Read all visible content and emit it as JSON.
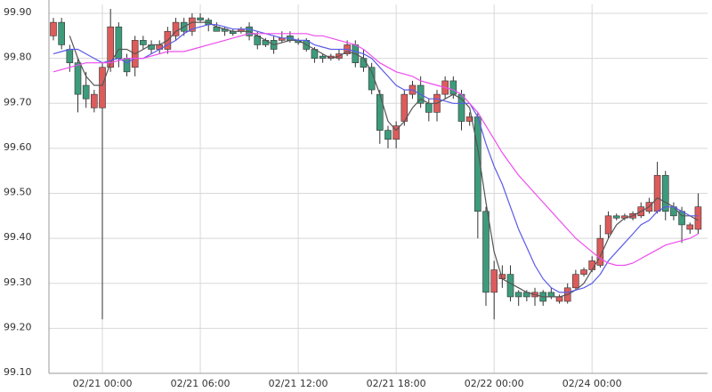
{
  "chart_data": {
    "type": "candlestick",
    "categories": [
      null,
      null,
      null,
      null,
      null,
      null,
      "02/21 00:00",
      null,
      null,
      null,
      null,
      null,
      null,
      null,
      null,
      null,
      null,
      null,
      "02/21 06:00",
      null,
      null,
      null,
      null,
      null,
      null,
      null,
      null,
      null,
      null,
      null,
      "02/21 12:00",
      null,
      null,
      null,
      null,
      null,
      null,
      null,
      null,
      null,
      null,
      null,
      "02/21 18:00",
      null,
      null,
      null,
      null,
      null,
      null,
      null,
      null,
      null,
      null,
      null,
      "02/22 00:00",
      null,
      null,
      null,
      null,
      null,
      null,
      null,
      null,
      null,
      null,
      null,
      "02/24 00:00",
      null,
      null,
      null,
      null,
      null,
      null,
      null,
      null,
      null,
      null,
      null,
      null,
      null
    ],
    "open": [
      99.85,
      99.88,
      99.82,
      99.79,
      99.74,
      99.69,
      99.69,
      99.78,
      99.87,
      99.8,
      99.78,
      99.84,
      99.83,
      99.82,
      99.82,
      99.85,
      99.88,
      99.86,
      99.89,
      99.885,
      99.87,
      99.865,
      99.86,
      99.86,
      99.87,
      99.85,
      99.84,
      99.84,
      99.84,
      99.85,
      99.84,
      99.84,
      99.82,
      99.805,
      99.8,
      99.8,
      99.81,
      99.83,
      99.8,
      99.78,
      99.72,
      99.64,
      99.62,
      99.66,
      99.72,
      99.74,
      99.7,
      99.68,
      99.72,
      99.75,
      99.72,
      99.66,
      99.67,
      99.46,
      99.28,
      99.31,
      99.32,
      99.28,
      99.28,
      99.27,
      99.28,
      99.28,
      99.26,
      99.26,
      99.29,
      99.32,
      99.33,
      99.34,
      99.41,
      99.45,
      99.445,
      99.445,
      99.45,
      99.46,
      99.46,
      99.54,
      99.47,
      99.46,
      99.42,
      99.42
    ],
    "high": [
      99.89,
      99.89,
      99.83,
      99.8,
      99.77,
      99.73,
      99.79,
      99.91,
      99.88,
      99.81,
      99.85,
      99.85,
      99.84,
      99.84,
      99.87,
      99.89,
      99.89,
      99.9,
      99.9,
      99.89,
      99.88,
      99.87,
      99.865,
      99.87,
      99.88,
      99.86,
      99.845,
      99.85,
      99.86,
      99.86,
      99.845,
      99.845,
      99.825,
      99.81,
      99.81,
      99.82,
      99.84,
      99.84,
      99.82,
      99.79,
      99.73,
      99.65,
      99.66,
      99.73,
      99.75,
      99.76,
      99.71,
      99.73,
      99.76,
      99.76,
      99.73,
      99.68,
      99.68,
      99.47,
      99.35,
      99.34,
      99.34,
      99.285,
      99.285,
      99.29,
      99.285,
      99.29,
      99.275,
      99.3,
      99.33,
      99.335,
      99.36,
      99.43,
      99.46,
      99.455,
      99.455,
      99.46,
      99.48,
      99.49,
      99.57,
      99.55,
      99.48,
      99.47,
      99.435,
      99.5
    ],
    "low": [
      99.84,
      99.82,
      99.77,
      99.68,
      99.69,
      99.68,
      99.22,
      99.77,
      99.78,
      99.76,
      99.76,
      99.82,
      99.81,
      99.81,
      99.81,
      99.84,
      99.85,
      99.85,
      99.88,
      99.86,
      99.86,
      99.85,
      99.85,
      99.855,
      99.84,
      99.82,
      99.825,
      99.81,
      99.835,
      99.835,
      99.83,
      99.815,
      99.79,
      99.79,
      99.795,
      99.795,
      99.805,
      99.78,
      99.77,
      99.72,
      99.61,
      99.6,
      99.6,
      99.65,
      99.71,
      99.69,
      99.66,
      99.66,
      99.71,
      99.71,
      99.64,
      99.65,
      99.4,
      99.25,
      99.22,
      99.29,
      99.26,
      99.25,
      99.26,
      99.25,
      99.25,
      99.265,
      99.255,
      99.255,
      99.285,
      99.315,
      99.325,
      99.335,
      99.4,
      99.44,
      99.44,
      99.44,
      99.445,
      99.455,
      99.455,
      99.44,
      99.44,
      99.39,
      99.41,
      99.41
    ],
    "close": [
      99.88,
      99.83,
      99.79,
      99.72,
      99.71,
      99.72,
      99.78,
      99.87,
      99.8,
      99.77,
      99.84,
      99.83,
      99.82,
      99.83,
      99.86,
      99.88,
      99.86,
      99.89,
      99.885,
      99.875,
      99.86,
      99.86,
      99.855,
      99.865,
      99.85,
      99.83,
      99.83,
      99.82,
      99.845,
      99.84,
      99.835,
      99.82,
      99.8,
      99.8,
      99.805,
      99.81,
      99.83,
      99.79,
      99.78,
      99.73,
      99.64,
      99.62,
      99.65,
      99.72,
      99.74,
      99.7,
      99.68,
      99.72,
      99.75,
      99.72,
      99.66,
      99.67,
      99.46,
      99.28,
      99.33,
      99.32,
      99.27,
      99.27,
      99.27,
      99.28,
      99.26,
      99.27,
      99.27,
      99.29,
      99.32,
      99.33,
      99.35,
      99.4,
      99.45,
      99.445,
      99.45,
      99.455,
      99.47,
      99.48,
      99.54,
      99.46,
      99.45,
      99.43,
      99.43,
      99.47
    ],
    "up_color": "#dc5c5c",
    "down_color": "#3d9b7b",
    "overlays": [
      {
        "color": "#555555",
        "values": [
          null,
          null,
          99.85,
          99.8,
          99.76,
          99.74,
          99.74,
          99.79,
          99.82,
          99.82,
          99.81,
          99.82,
          99.83,
          99.83,
          99.84,
          99.86,
          99.87,
          99.88,
          99.88,
          99.88,
          99.87,
          99.865,
          99.86,
          99.86,
          99.86,
          99.85,
          99.84,
          99.83,
          99.835,
          99.84,
          99.84,
          99.83,
          99.82,
          99.81,
          99.8,
          99.805,
          99.815,
          99.81,
          99.8,
          99.77,
          99.72,
          99.66,
          99.64,
          99.66,
          99.69,
          99.71,
          99.7,
          99.7,
          99.71,
          99.72,
          99.71,
          99.69,
          99.6,
          99.48,
          99.37,
          99.31,
          99.3,
          99.29,
          99.28,
          99.275,
          99.27,
          99.27,
          99.27,
          99.275,
          99.285,
          99.3,
          99.33,
          99.36,
          99.4,
          99.43,
          99.445,
          99.45,
          99.46,
          99.47,
          99.49,
          99.48,
          99.47,
          99.45,
          99.45,
          99.44
        ]
      },
      {
        "color": "#5a5ae8",
        "values": [
          99.81,
          99.815,
          99.82,
          99.82,
          99.81,
          99.8,
          99.79,
          99.795,
          99.8,
          99.79,
          99.8,
          99.8,
          99.81,
          99.82,
          99.83,
          99.84,
          99.855,
          99.865,
          99.87,
          99.875,
          99.875,
          99.87,
          99.865,
          99.865,
          99.865,
          99.86,
          99.855,
          99.85,
          99.845,
          99.845,
          99.84,
          99.84,
          99.83,
          99.825,
          99.82,
          99.82,
          99.82,
          99.815,
          99.81,
          99.8,
          99.78,
          99.76,
          99.74,
          99.73,
          99.73,
          99.72,
          99.71,
          99.71,
          99.705,
          99.7,
          99.7,
          99.7,
          99.67,
          99.61,
          99.56,
          99.52,
          99.47,
          99.42,
          99.38,
          99.34,
          99.31,
          99.29,
          99.28,
          99.28,
          99.285,
          99.29,
          99.3,
          99.32,
          99.35,
          99.37,
          99.39,
          99.41,
          99.43,
          99.44,
          99.46,
          99.47,
          99.47,
          99.46,
          99.45,
          99.45
        ]
      },
      {
        "color": "#ee4dee",
        "values": [
          99.77,
          99.775,
          99.78,
          99.785,
          99.79,
          99.79,
          99.79,
          99.79,
          99.795,
          99.8,
          99.8,
          99.8,
          99.805,
          99.81,
          99.815,
          99.815,
          99.815,
          99.82,
          99.825,
          99.83,
          99.835,
          99.84,
          99.845,
          99.85,
          99.855,
          99.855,
          99.855,
          99.855,
          99.855,
          99.855,
          99.855,
          99.855,
          99.85,
          99.85,
          99.845,
          99.84,
          99.835,
          99.83,
          99.82,
          99.805,
          99.79,
          99.78,
          99.77,
          99.765,
          99.76,
          99.75,
          99.745,
          99.74,
          99.735,
          99.73,
          99.72,
          99.7,
          99.68,
          99.65,
          99.62,
          99.59,
          99.565,
          99.54,
          99.52,
          99.5,
          99.48,
          99.46,
          99.44,
          99.42,
          99.4,
          99.385,
          99.37,
          99.355,
          99.345,
          99.34,
          99.34,
          99.345,
          99.355,
          99.365,
          99.375,
          99.385,
          99.39,
          99.395,
          99.4,
          99.41
        ]
      }
    ],
    "ylim": [
      99.1,
      99.9
    ],
    "yticks": [
      {
        "value": 99.1,
        "label": "99.10"
      },
      {
        "value": 99.2,
        "label": "99.20"
      },
      {
        "value": 99.3,
        "label": "99.30"
      },
      {
        "value": 99.4,
        "label": "99.40"
      },
      {
        "value": 99.5,
        "label": "99.50"
      },
      {
        "value": 99.6,
        "label": "99.60"
      },
      {
        "value": 99.7,
        "label": "99.70"
      },
      {
        "value": 99.8,
        "label": "99.80"
      },
      {
        "value": 99.9,
        "label": "99.90"
      }
    ],
    "grid": true
  }
}
